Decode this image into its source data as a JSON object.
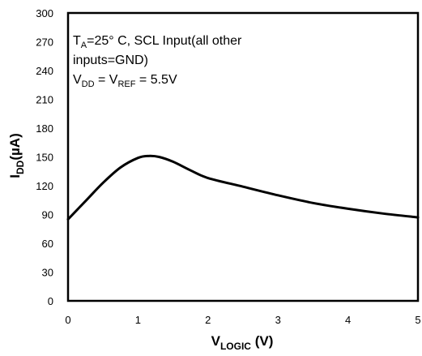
{
  "chart_data": {
    "type": "line",
    "xlabel": {
      "main": "V",
      "sub": "LOGIC",
      "unit": " (V)"
    },
    "ylabel": {
      "main": "I",
      "sub": "DD",
      "unit": "(µA)"
    },
    "xlim": [
      0,
      5
    ],
    "ylim": [
      0,
      300
    ],
    "x_ticks": [
      "0",
      "1",
      "2",
      "3",
      "4",
      "5"
    ],
    "y_ticks": [
      "0",
      "30",
      "60",
      "90",
      "120",
      "150",
      "180",
      "210",
      "240",
      "270",
      "300"
    ],
    "grid": false,
    "legend": "none",
    "annotation": {
      "line1": {
        "p1": "T",
        "sub1": "A",
        "p2": "=25°  C, SCL Input(all other"
      },
      "line2": "inputs=GND)",
      "line3": {
        "p1": "V",
        "sub1": "DD",
        "p2": " = V",
        "sub2": "REF",
        "p3": " = 5.5V"
      }
    },
    "series": [
      {
        "color": "#000000",
        "x": [
          0,
          0.25,
          0.5,
          0.75,
          1.0,
          1.15,
          1.3,
          1.5,
          1.75,
          2.0,
          2.5,
          3.0,
          3.5,
          4.0,
          4.5,
          5.0
        ],
        "y": [
          85,
          104,
          123,
          139,
          149,
          151,
          150,
          145,
          136,
          128,
          119,
          110,
          102,
          96,
          91,
          87
        ]
      }
    ]
  }
}
